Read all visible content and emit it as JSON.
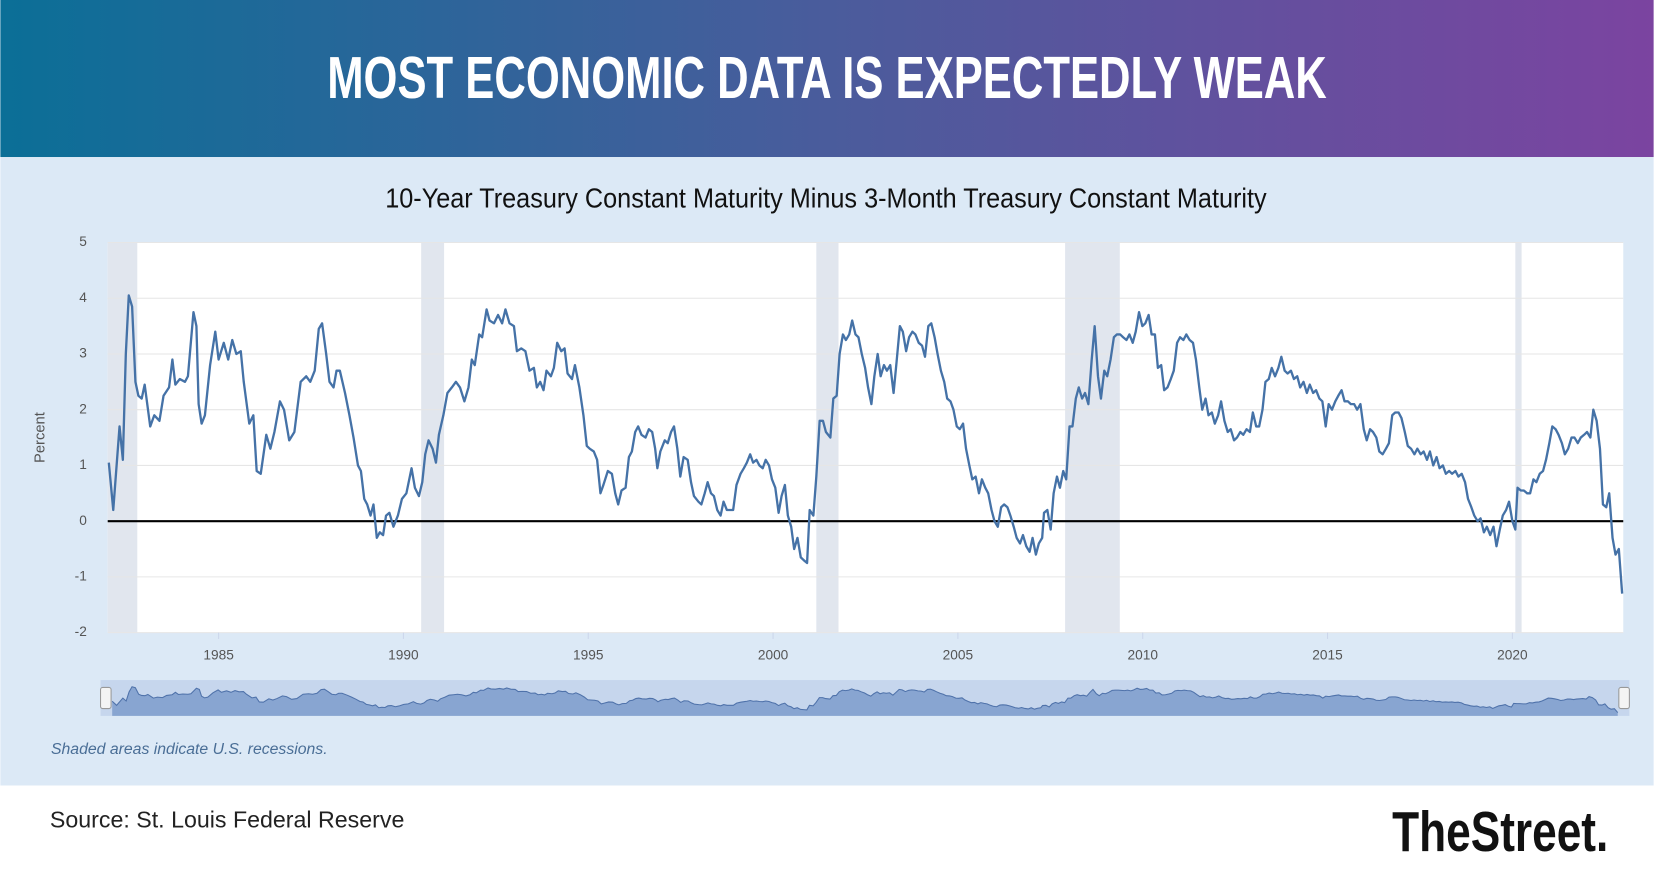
{
  "header": {
    "title": "MOST ECONOMIC DATA IS EXPECTEDLY WEAK"
  },
  "chart_data": {
    "type": "line",
    "title": "10-Year Treasury Constant Maturity Minus 3-Month Treasury Constant Maturity",
    "ylabel": "Percent",
    "note": "Shaded areas indicate U.S. recessions.",
    "color": "#4572a7",
    "grid": true,
    "xlim": [
      1982,
      2023
    ],
    "ylim": [
      -2,
      5
    ],
    "xticks": [
      1985,
      1990,
      1995,
      2000,
      2005,
      2010,
      2015,
      2020
    ],
    "yticks": [
      -2,
      -1,
      0,
      1,
      2,
      3,
      4,
      5
    ],
    "recessions": [
      [
        1982.0,
        1982.8
      ],
      [
        1990.48,
        1991.1
      ],
      [
        2001.17,
        2001.77
      ],
      [
        2007.9,
        2009.38
      ],
      [
        2020.08,
        2020.25
      ]
    ],
    "x": [
      1982.03,
      1982.15,
      1982.32,
      1982.41,
      1982.49,
      1982.57,
      1982.66,
      1982.75,
      1982.83,
      1982.92,
      1983.0,
      1983.15,
      1983.26,
      1983.4,
      1983.51,
      1983.66,
      1983.75,
      1983.83,
      1983.95,
      1984.09,
      1984.17,
      1984.32,
      1984.4,
      1984.46,
      1984.54,
      1984.63,
      1984.77,
      1984.91,
      1985.0,
      1985.14,
      1985.26,
      1985.37,
      1985.48,
      1985.6,
      1985.68,
      1985.83,
      1985.94,
      1986.03,
      1986.14,
      1986.29,
      1986.4,
      1986.51,
      1986.66,
      1986.77,
      1986.91,
      1987.05,
      1987.22,
      1987.37,
      1987.48,
      1987.6,
      1987.71,
      1987.8,
      1987.91,
      1988.0,
      1988.11,
      1988.19,
      1988.28,
      1988.42,
      1988.54,
      1988.65,
      1988.77,
      1988.85,
      1988.94,
      1989.02,
      1989.11,
      1989.19,
      1989.28,
      1989.36,
      1989.45,
      1989.53,
      1989.62,
      1989.73,
      1989.85,
      1989.96,
      1990.08,
      1990.22,
      1990.31,
      1990.42,
      1990.51,
      1990.59,
      1990.68,
      1990.79,
      1990.88,
      1990.96,
      1991.08,
      1991.19,
      1991.31,
      1991.42,
      1991.53,
      1991.65,
      1991.76,
      1991.85,
      1991.93,
      1992.05,
      1992.13,
      1992.25,
      1992.33,
      1992.45,
      1992.56,
      1992.67,
      1992.76,
      1992.87,
      1992.99,
      1993.07,
      1993.19,
      1993.3,
      1993.41,
      1993.53,
      1993.61,
      1993.7,
      1993.79,
      1993.87,
      1993.99,
      1994.07,
      1994.16,
      1994.27,
      1994.36,
      1994.44,
      1994.56,
      1994.64,
      1994.76,
      1994.87,
      1994.96,
      1995.04,
      1995.15,
      1995.24,
      1995.33,
      1995.41,
      1995.53,
      1995.64,
      1995.73,
      1995.81,
      1995.9,
      1996.01,
      1996.1,
      1996.18,
      1996.27,
      1996.35,
      1996.44,
      1996.55,
      1996.64,
      1996.73,
      1996.81,
      1996.87,
      1996.95,
      1997.07,
      1997.15,
      1997.24,
      1997.32,
      1997.41,
      1997.49,
      1997.58,
      1997.69,
      1997.78,
      1997.86,
      1997.98,
      1998.06,
      1998.15,
      1998.23,
      1998.32,
      1998.4,
      1998.49,
      1998.58,
      1998.66,
      1998.75,
      1998.92,
      1999.01,
      1999.12,
      1999.21,
      1999.29,
      1999.38,
      1999.46,
      1999.55,
      1999.63,
      1999.72,
      1999.8,
      1999.89,
      1999.97,
      2000.06,
      2000.15,
      2000.23,
      2000.32,
      2000.4,
      2000.49,
      2000.57,
      2000.66,
      2000.75,
      2000.83,
      2000.92,
      2000.99,
      2001.09,
      2001.17,
      2001.26,
      2001.35,
      2001.43,
      2001.55,
      2001.63,
      2001.72,
      2001.8,
      2001.89,
      2001.97,
      2002.06,
      2002.14,
      2002.23,
      2002.31,
      2002.4,
      2002.49,
      2002.57,
      2002.66,
      2002.74,
      2002.83,
      2002.91,
      2003.0,
      2003.08,
      2003.17,
      2003.26,
      2003.34,
      2003.43,
      2003.51,
      2003.6,
      2003.68,
      2003.77,
      2003.85,
      2003.94,
      2004.03,
      2004.11,
      2004.2,
      2004.28,
      2004.37,
      2004.45,
      2004.54,
      2004.63,
      2004.71,
      2004.8,
      2004.88,
      2004.97,
      2005.05,
      2005.14,
      2005.22,
      2005.31,
      2005.39,
      2005.48,
      2005.57,
      2005.65,
      2005.74,
      2005.82,
      2005.91,
      2005.99,
      2006.08,
      2006.17,
      2006.25,
      2006.34,
      2006.42,
      2006.51,
      2006.59,
      2006.68,
      2006.76,
      2006.85,
      2006.94,
      2007.02,
      2007.11,
      2007.19,
      2007.28,
      2007.33,
      2007.42,
      2007.51,
      2007.59,
      2007.68,
      2007.76,
      2007.85,
      2007.93,
      2008.02,
      2008.1,
      2008.19,
      2008.27,
      2008.36,
      2008.44,
      2008.53,
      2008.62,
      2008.7,
      2008.79,
      2008.87,
      2008.96,
      2009.04,
      2009.13,
      2009.22,
      2009.3,
      2009.39,
      2009.47,
      2009.56,
      2009.64,
      2009.73,
      2009.81,
      2009.9,
      2009.99,
      2010.07,
      2010.16,
      2010.24,
      2010.33,
      2010.41,
      2010.5,
      2010.58,
      2010.67,
      2010.76,
      2010.84,
      2010.93,
      2011.01,
      2011.1,
      2011.18,
      2011.27,
      2011.36,
      2011.44,
      2011.53,
      2011.61,
      2011.7,
      2011.78,
      2011.87,
      2011.95,
      2012.04,
      2012.12,
      2012.21,
      2012.3,
      2012.38,
      2012.47,
      2012.55,
      2012.64,
      2012.72,
      2012.81,
      2012.9,
      2012.98,
      2013.07,
      2013.15,
      2013.24,
      2013.32,
      2013.41,
      2013.49,
      2013.58,
      2013.67,
      2013.75,
      2013.84,
      2013.92,
      2014.01,
      2014.09,
      2014.18,
      2014.26,
      2014.35,
      2014.44,
      2014.52,
      2014.61,
      2014.69,
      2014.78,
      2014.86,
      2014.95,
      2015.03,
      2015.12,
      2015.21,
      2015.29,
      2015.38,
      2015.46,
      2015.55,
      2015.63,
      2015.72,
      2015.8,
      2015.89,
      2015.98,
      2016.06,
      2016.15,
      2016.23,
      2016.32,
      2016.4,
      2016.49,
      2016.58,
      2016.66,
      2016.75,
      2016.83,
      2016.92,
      2017.0,
      2017.09,
      2017.17,
      2017.26,
      2017.35,
      2017.43,
      2017.52,
      2017.6,
      2017.69,
      2017.77,
      2017.86,
      2017.95,
      2018.03,
      2018.12,
      2018.2,
      2018.29,
      2018.37,
      2018.46,
      2018.54,
      2018.63,
      2018.72,
      2018.8,
      2018.89,
      2018.97,
      2019.06,
      2019.14,
      2019.23,
      2019.31,
      2019.4,
      2019.49,
      2019.57,
      2019.66,
      2019.74,
      2019.83,
      2019.91,
      2020.0,
      2020.08,
      2020.14,
      2020.23,
      2020.31,
      2020.4,
      2020.48,
      2020.57,
      2020.65,
      2020.74,
      2020.83,
      2020.91,
      2021.0,
      2021.08,
      2021.17,
      2021.25,
      2021.34,
      2021.42,
      2021.51,
      2021.6,
      2021.68,
      2021.77,
      2021.85,
      2021.94,
      2022.02,
      2022.11,
      2022.19,
      2022.28,
      2022.37,
      2022.45,
      2022.54,
      2022.62,
      2022.71,
      2022.79,
      2022.88,
      2022.97
    ],
    "values": [
      1.05,
      0.2,
      1.7,
      1.1,
      3.0,
      4.05,
      3.85,
      2.5,
      2.25,
      2.2,
      2.45,
      1.7,
      1.9,
      1.8,
      2.25,
      2.4,
      2.9,
      2.45,
      2.55,
      2.5,
      2.6,
      3.75,
      3.5,
      2.1,
      1.75,
      1.9,
      2.8,
      3.4,
      2.9,
      3.2,
      2.9,
      3.25,
      3.0,
      3.05,
      2.5,
      1.75,
      1.9,
      0.9,
      0.85,
      1.55,
      1.3,
      1.6,
      2.15,
      2.0,
      1.45,
      1.6,
      2.5,
      2.6,
      2.5,
      2.7,
      3.45,
      3.55,
      3.0,
      2.5,
      2.4,
      2.7,
      2.7,
      2.3,
      1.9,
      1.5,
      1.0,
      0.9,
      0.4,
      0.3,
      0.1,
      0.3,
      -0.3,
      -0.2,
      -0.25,
      0.1,
      0.15,
      -0.1,
      0.1,
      0.4,
      0.5,
      0.95,
      0.6,
      0.45,
      0.7,
      1.2,
      1.45,
      1.3,
      1.05,
      1.55,
      1.9,
      2.3,
      2.4,
      2.5,
      2.4,
      2.15,
      2.4,
      2.9,
      2.8,
      3.35,
      3.3,
      3.8,
      3.6,
      3.55,
      3.7,
      3.55,
      3.8,
      3.55,
      3.5,
      3.05,
      3.1,
      3.05,
      2.7,
      2.75,
      2.4,
      2.5,
      2.35,
      2.7,
      2.6,
      2.75,
      3.2,
      3.05,
      3.1,
      2.65,
      2.55,
      2.8,
      2.4,
      1.9,
      1.35,
      1.3,
      1.25,
      1.1,
      0.5,
      0.65,
      0.9,
      0.85,
      0.5,
      0.3,
      0.55,
      0.6,
      1.15,
      1.25,
      1.6,
      1.7,
      1.55,
      1.5,
      1.65,
      1.6,
      1.3,
      0.95,
      1.25,
      1.45,
      1.4,
      1.6,
      1.7,
      1.3,
      0.8,
      1.15,
      1.1,
      0.7,
      0.45,
      0.35,
      0.3,
      0.5,
      0.7,
      0.5,
      0.45,
      0.2,
      0.1,
      0.35,
      0.2,
      0.2,
      0.65,
      0.85,
      0.95,
      1.05,
      1.2,
      1.05,
      1.1,
      1.0,
      0.95,
      1.1,
      1.0,
      0.75,
      0.6,
      0.15,
      0.45,
      0.65,
      0.1,
      -0.1,
      -0.5,
      -0.3,
      -0.65,
      -0.7,
      -0.75,
      0.2,
      0.1,
      0.8,
      1.8,
      1.8,
      1.6,
      1.5,
      2.2,
      2.25,
      3.0,
      3.35,
      3.25,
      3.35,
      3.6,
      3.35,
      3.3,
      3.0,
      2.75,
      2.4,
      2.1,
      2.6,
      3.0,
      2.6,
      2.8,
      2.7,
      2.8,
      2.3,
      2.85,
      3.5,
      3.4,
      3.05,
      3.3,
      3.4,
      3.35,
      3.2,
      3.15,
      2.95,
      3.5,
      3.55,
      3.3,
      3.0,
      2.7,
      2.5,
      2.2,
      2.15,
      2.0,
      1.7,
      1.65,
      1.75,
      1.3,
      1.0,
      0.75,
      0.8,
      0.5,
      0.75,
      0.6,
      0.5,
      0.2,
      0.0,
      -0.1,
      0.25,
      0.3,
      0.25,
      0.1,
      -0.1,
      -0.3,
      -0.4,
      -0.25,
      -0.45,
      -0.55,
      -0.3,
      -0.6,
      -0.4,
      -0.3,
      0.15,
      0.2,
      -0.15,
      0.5,
      0.8,
      0.6,
      0.9,
      0.75,
      1.7,
      1.7,
      2.2,
      2.4,
      2.2,
      2.3,
      2.1,
      2.9,
      3.5,
      2.6,
      2.2,
      2.7,
      2.6,
      2.9,
      3.3,
      3.35,
      3.35,
      3.3,
      3.25,
      3.35,
      3.2,
      3.4,
      3.75,
      3.5,
      3.55,
      3.7,
      3.35,
      3.35,
      2.75,
      2.8,
      2.35,
      2.4,
      2.55,
      2.7,
      3.2,
      3.3,
      3.25,
      3.35,
      3.25,
      3.2,
      2.9,
      2.4,
      2.0,
      2.2,
      1.9,
      1.95,
      1.75,
      1.9,
      2.15,
      1.8,
      1.6,
      1.65,
      1.45,
      1.5,
      1.6,
      1.55,
      1.65,
      1.6,
      1.95,
      1.7,
      1.7,
      2.0,
      2.5,
      2.55,
      2.75,
      2.6,
      2.75,
      2.95,
      2.7,
      2.65,
      2.7,
      2.55,
      2.6,
      2.4,
      2.5,
      2.3,
      2.45,
      2.3,
      2.35,
      2.2,
      2.15,
      1.7,
      2.1,
      2.0,
      2.15,
      2.25,
      2.35,
      2.15,
      2.15,
      2.1,
      2.1,
      2.0,
      2.1,
      1.65,
      1.45,
      1.65,
      1.6,
      1.5,
      1.25,
      1.2,
      1.3,
      1.4,
      1.9,
      1.95,
      1.95,
      1.85,
      1.6,
      1.35,
      1.3,
      1.2,
      1.3,
      1.2,
      1.25,
      1.1,
      1.25,
      1.0,
      1.15,
      0.95,
      1.0,
      0.85,
      0.9,
      0.85,
      0.9,
      0.8,
      0.85,
      0.7,
      0.4,
      0.25,
      0.1,
      0.0,
      0.05,
      -0.2,
      -0.1,
      -0.25,
      -0.1,
      -0.45,
      -0.15,
      0.1,
      0.2,
      0.35,
      0.0,
      -0.15,
      0.6,
      0.55,
      0.55,
      0.5,
      0.5,
      0.75,
      0.7,
      0.85,
      0.9,
      1.1,
      1.4,
      1.7,
      1.65,
      1.55,
      1.4,
      1.2,
      1.3,
      1.5,
      1.5,
      1.4,
      1.5,
      1.55,
      1.6,
      1.5,
      2.0,
      1.8,
      1.3,
      0.3,
      0.25,
      0.5,
      -0.3,
      -0.6,
      -0.5,
      -1.3
    ]
  },
  "footer": {
    "source": "Source: St. Louis Federal Reserve",
    "logo": "TheStreet."
  }
}
